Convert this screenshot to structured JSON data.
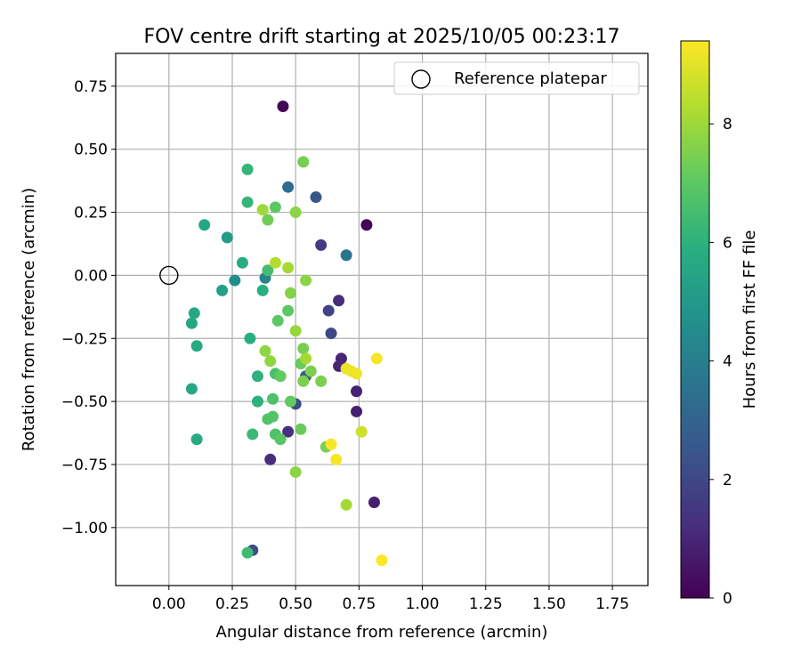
{
  "chart_data": {
    "type": "scatter",
    "title": "FOV centre drift starting at 2025/10/05 00:23:17",
    "xlabel": "Angular distance from reference (arcmin)",
    "ylabel": "Rotation from reference (arcmin)",
    "xlim": [
      -0.21,
      1.89
    ],
    "ylim": [
      -1.23,
      0.88
    ],
    "x_ticks": [
      0.0,
      0.25,
      0.5,
      0.75,
      1.0,
      1.25,
      1.5,
      1.75
    ],
    "x_tick_labels": [
      "0.00",
      "0.25",
      "0.50",
      "0.75",
      "1.00",
      "1.25",
      "1.50",
      "1.75"
    ],
    "y_ticks": [
      0.75,
      0.5,
      0.25,
      0.0,
      -0.25,
      -0.5,
      -0.75,
      -1.0
    ],
    "y_tick_labels": [
      "0.75",
      "0.50",
      "0.25",
      "0.00",
      "−0.25",
      "−0.50",
      "−0.75",
      "−1.00"
    ],
    "grid": true,
    "legend": {
      "position": "top-right",
      "label": "Reference platepar"
    },
    "reference_point": {
      "x": 0.0,
      "y": 0.0
    },
    "colorbar": {
      "label": "Hours from first FF file",
      "min": 0,
      "max": 9.4,
      "ticks": [
        0,
        2,
        4,
        6,
        8
      ],
      "tick_labels": [
        "0",
        "2",
        "4",
        "6",
        "8"
      ],
      "colormap": "viridis"
    },
    "points": [
      {
        "x": 0.45,
        "y": 0.67,
        "h": 0.1
      },
      {
        "x": 0.78,
        "y": 0.2,
        "h": 0.1
      },
      {
        "x": 0.81,
        "y": -0.9,
        "h": 0.8
      },
      {
        "x": 0.74,
        "y": -0.54,
        "h": 0.8
      },
      {
        "x": 0.74,
        "y": -0.46,
        "h": 0.9
      },
      {
        "x": 0.67,
        "y": -0.36,
        "h": 1.0
      },
      {
        "x": 0.68,
        "y": -0.33,
        "h": 1.0
      },
      {
        "x": 0.67,
        "y": -0.1,
        "h": 1.2
      },
      {
        "x": 0.4,
        "y": -0.73,
        "h": 1.2
      },
      {
        "x": 0.47,
        "y": -0.62,
        "h": 1.3
      },
      {
        "x": 0.6,
        "y": 0.12,
        "h": 1.6
      },
      {
        "x": 0.63,
        "y": -0.14,
        "h": 1.9
      },
      {
        "x": 0.64,
        "y": -0.23,
        "h": 2.0
      },
      {
        "x": 0.5,
        "y": -0.51,
        "h": 2.2
      },
      {
        "x": 0.33,
        "y": -1.09,
        "h": 2.2
      },
      {
        "x": 0.58,
        "y": 0.31,
        "h": 2.5
      },
      {
        "x": 0.54,
        "y": -0.4,
        "h": 2.8
      },
      {
        "x": 0.47,
        "y": 0.35,
        "h": 3.3
      },
      {
        "x": 0.7,
        "y": 0.08,
        "h": 3.6
      },
      {
        "x": 0.38,
        "y": -0.01,
        "h": 4.2
      },
      {
        "x": 0.26,
        "y": -0.02,
        "h": 4.6
      },
      {
        "x": 0.23,
        "y": 0.15,
        "h": 5.2
      },
      {
        "x": 0.21,
        "y": -0.06,
        "h": 5.3
      },
      {
        "x": 0.14,
        "y": 0.2,
        "h": 5.6
      },
      {
        "x": 0.1,
        "y": -0.15,
        "h": 5.6
      },
      {
        "x": 0.09,
        "y": -0.19,
        "h": 5.6
      },
      {
        "x": 0.11,
        "y": -0.28,
        "h": 5.7
      },
      {
        "x": 0.09,
        "y": -0.45,
        "h": 5.6
      },
      {
        "x": 0.11,
        "y": -0.65,
        "h": 5.7
      },
      {
        "x": 0.29,
        "y": 0.05,
        "h": 5.8
      },
      {
        "x": 0.37,
        "y": -0.06,
        "h": 5.9
      },
      {
        "x": 0.32,
        "y": -0.25,
        "h": 5.9
      },
      {
        "x": 0.35,
        "y": -0.4,
        "h": 6.0
      },
      {
        "x": 0.35,
        "y": -0.5,
        "h": 6.0
      },
      {
        "x": 0.31,
        "y": 0.42,
        "h": 6.2
      },
      {
        "x": 0.31,
        "y": 0.29,
        "h": 6.2
      },
      {
        "x": 0.33,
        "y": -0.63,
        "h": 6.3
      },
      {
        "x": 0.31,
        "y": -1.1,
        "h": 6.4
      },
      {
        "x": 0.39,
        "y": 0.02,
        "h": 6.5
      },
      {
        "x": 0.42,
        "y": -0.39,
        "h": 6.6
      },
      {
        "x": 0.41,
        "y": -0.49,
        "h": 6.7
      },
      {
        "x": 0.42,
        "y": -0.63,
        "h": 6.7
      },
      {
        "x": 0.41,
        "y": -0.56,
        "h": 6.8
      },
      {
        "x": 0.39,
        "y": -0.57,
        "h": 6.8
      },
      {
        "x": 0.44,
        "y": -0.65,
        "h": 6.9
      },
      {
        "x": 0.42,
        "y": 0.27,
        "h": 7.0
      },
      {
        "x": 0.43,
        "y": -0.18,
        "h": 7.0
      },
      {
        "x": 0.47,
        "y": -0.14,
        "h": 7.0
      },
      {
        "x": 0.44,
        "y": -0.4,
        "h": 7.1
      },
      {
        "x": 0.48,
        "y": -0.5,
        "h": 7.1
      },
      {
        "x": 0.52,
        "y": -0.35,
        "h": 7.2
      },
      {
        "x": 0.52,
        "y": -0.61,
        "h": 7.2
      },
      {
        "x": 0.39,
        "y": 0.22,
        "h": 7.3
      },
      {
        "x": 0.53,
        "y": 0.45,
        "h": 7.4
      },
      {
        "x": 0.53,
        "y": -0.29,
        "h": 7.4
      },
      {
        "x": 0.53,
        "y": -0.42,
        "h": 7.5
      },
      {
        "x": 0.56,
        "y": -0.38,
        "h": 7.5
      },
      {
        "x": 0.6,
        "y": -0.42,
        "h": 7.5
      },
      {
        "x": 0.62,
        "y": -0.68,
        "h": 7.5
      },
      {
        "x": 0.48,
        "y": -0.07,
        "h": 7.6
      },
      {
        "x": 0.5,
        "y": 0.25,
        "h": 7.7
      },
      {
        "x": 0.54,
        "y": -0.02,
        "h": 7.7
      },
      {
        "x": 0.5,
        "y": -0.78,
        "h": 7.7
      },
      {
        "x": 0.38,
        "y": -0.3,
        "h": 7.8
      },
      {
        "x": 0.4,
        "y": -0.34,
        "h": 7.8
      },
      {
        "x": 0.5,
        "y": -0.22,
        "h": 7.9
      },
      {
        "x": 0.37,
        "y": 0.26,
        "h": 8.0
      },
      {
        "x": 0.47,
        "y": 0.03,
        "h": 8.1
      },
      {
        "x": 0.54,
        "y": -0.33,
        "h": 8.1
      },
      {
        "x": 0.7,
        "y": -0.91,
        "h": 8.1
      },
      {
        "x": 0.42,
        "y": 0.05,
        "h": 8.3
      },
      {
        "x": 0.76,
        "y": -0.62,
        "h": 8.7
      },
      {
        "x": 0.7,
        "y": -0.37,
        "h": 9.1
      },
      {
        "x": 0.72,
        "y": -0.38,
        "h": 9.2
      },
      {
        "x": 0.74,
        "y": -0.39,
        "h": 9.2
      },
      {
        "x": 0.82,
        "y": -0.33,
        "h": 9.3
      },
      {
        "x": 0.64,
        "y": -0.67,
        "h": 9.3
      },
      {
        "x": 0.66,
        "y": -0.73,
        "h": 9.3
      },
      {
        "x": 0.84,
        "y": -1.13,
        "h": 9.4
      }
    ]
  }
}
